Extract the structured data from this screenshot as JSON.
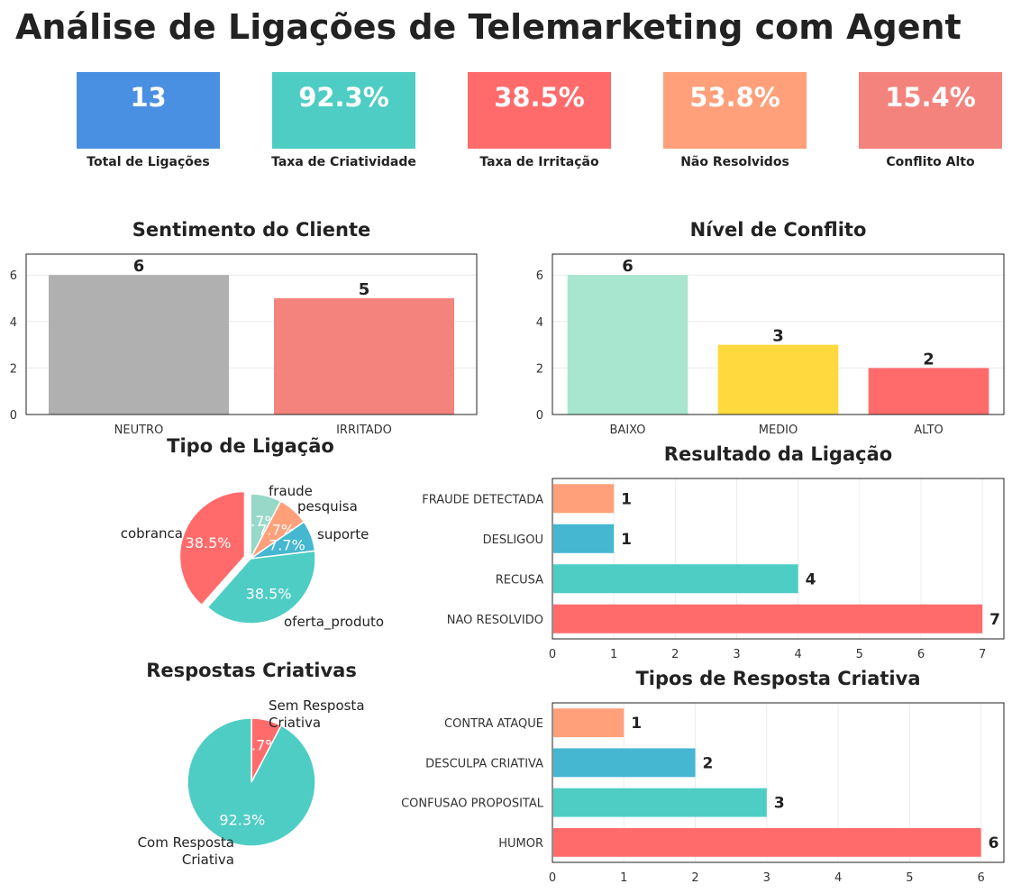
{
  "title": "Análise de Ligações de Telemarketing com Agent",
  "kpis": [
    {
      "value": "13",
      "label": "Total de Ligações",
      "color": "#4a90e2"
    },
    {
      "value": "92.3%",
      "label": "Taxa de Criatividade",
      "color": "#4ecdc4"
    },
    {
      "value": "38.5%",
      "label": "Taxa de Irritação",
      "color": "#ff6b6b"
    },
    {
      "value": "53.8%",
      "label": "Não Resolvidos",
      "color": "#ffa07a"
    },
    {
      "value": "15.4%",
      "label": "Conflito Alto",
      "color": "#f4837d"
    }
  ],
  "chart_data": [
    {
      "type": "bar",
      "title": "Sentimento do Cliente",
      "categories": [
        "NEUTRO",
        "IRRITADO"
      ],
      "values": [
        6,
        5
      ],
      "colors": [
        "#b0b0b0",
        "#f4837d"
      ],
      "ylim": [
        0,
        6.9
      ],
      "yticks": [
        0,
        2,
        4,
        6
      ],
      "grid": true
    },
    {
      "type": "bar",
      "title": "Nível de Conflito",
      "categories": [
        "BAIXO",
        "MEDIO",
        "ALTO"
      ],
      "values": [
        6,
        3,
        2
      ],
      "colors": [
        "#a8e6cf",
        "#ffd93d",
        "#ff6b6b"
      ],
      "ylim": [
        0,
        6.9
      ],
      "yticks": [
        0,
        2,
        4,
        6
      ],
      "grid": true
    },
    {
      "type": "pie",
      "title": "Tipo de Ligação",
      "categories": [
        "fraude",
        "pesquisa",
        "suporte",
        "oferta_produto",
        "cobranca"
      ],
      "values": [
        1,
        1,
        1,
        5,
        5
      ],
      "pct_labels": [
        "7.7%",
        "7.7%",
        "7.7%",
        "38.5%",
        "38.5%"
      ],
      "colors": [
        "#98d8c8",
        "#ffa07a",
        "#45b7d1",
        "#4ecdc4",
        "#ff6b6b"
      ],
      "exploded": "cobranca"
    },
    {
      "type": "barh",
      "title": "Resultado da Ligação",
      "categories": [
        "FRAUDE DETECTADA",
        "DESLIGOU",
        "RECUSA",
        "NAO RESOLVIDO"
      ],
      "values": [
        1,
        1,
        4,
        7
      ],
      "colors": [
        "#ffa07a",
        "#45b7d1",
        "#4ecdc4",
        "#ff6b6b"
      ],
      "xlim": [
        0,
        7.35
      ],
      "xticks": [
        0,
        1,
        2,
        3,
        4,
        5,
        6,
        7
      ],
      "grid": true
    },
    {
      "type": "pie",
      "title": "Respostas Criativas",
      "categories": [
        "Sem Resposta Criativa",
        "Com Resposta Criativa"
      ],
      "values": [
        1,
        12
      ],
      "pct_labels": [
        "7.7%",
        "92.3%"
      ],
      "colors": [
        "#ff6b6b",
        "#4ecdc4"
      ]
    },
    {
      "type": "barh",
      "title": "Tipos de Resposta Criativa",
      "categories": [
        "CONTRA ATAQUE",
        "DESCULPA CRIATIVA",
        "CONFUSAO PROPOSITAL",
        "HUMOR"
      ],
      "values": [
        1,
        2,
        3,
        6
      ],
      "colors": [
        "#ffa07a",
        "#45b7d1",
        "#4ecdc4",
        "#ff6b6b"
      ],
      "xlim": [
        0,
        6.32
      ],
      "xticks": [
        0,
        1,
        2,
        3,
        4,
        5,
        6
      ],
      "grid": true
    }
  ]
}
